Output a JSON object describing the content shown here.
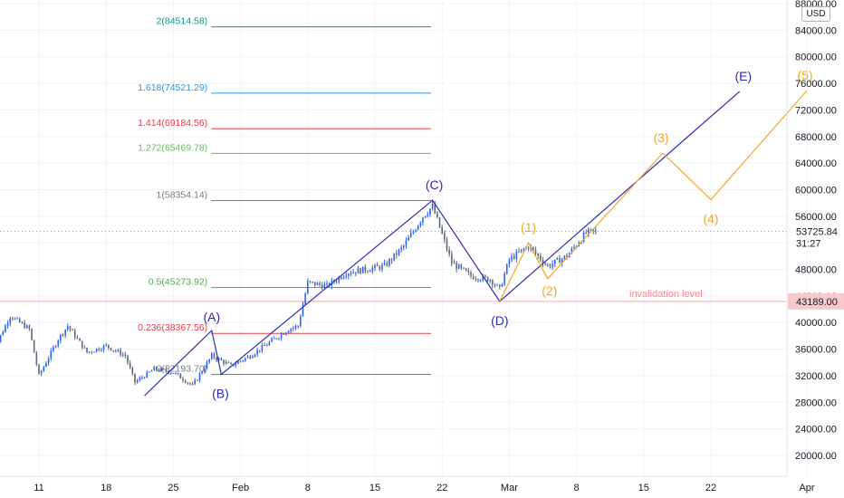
{
  "chart_data": {
    "type": "candlestick",
    "currency": "USD",
    "y_axis": {
      "ticks": [
        20000,
        24000,
        28000,
        32000,
        36000,
        40000,
        44000,
        48000,
        52000,
        56000,
        60000,
        64000,
        68000,
        72000,
        76000,
        80000,
        84000,
        88000
      ],
      "tick_labels": [
        "20000.00",
        "24000.00",
        "28000.00",
        "32000.00",
        "36000.00",
        "40000.00",
        "44000.00",
        "48000.00",
        "52000.00",
        "56000.00",
        "60000.00",
        "64000.00",
        "68000.00",
        "72000.00",
        "76000.00",
        "80000.00",
        "84000.00",
        "88000.00"
      ],
      "range": [
        18000,
        89000
      ]
    },
    "x_axis": {
      "tick_labels": [
        "11",
        "18",
        "25",
        "Feb",
        "8",
        "15",
        "22",
        "Mar",
        "8",
        "15",
        "22",
        "Apr"
      ],
      "tick_dates": [
        "2021-01-11",
        "2021-01-18",
        "2021-01-25",
        "2021-02-01",
        "2021-02-08",
        "2021-02-15",
        "2021-02-22",
        "2021-03-01",
        "2021-03-08",
        "2021-03-15",
        "2021-03-22",
        "2021-04-01"
      ],
      "range": [
        "2021-01-06",
        "2021-04-03"
      ]
    },
    "price_path": [
      {
        "date": "2021-01-06",
        "price": 35000
      },
      {
        "date": "2021-01-08",
        "price": 41000
      },
      {
        "date": "2021-01-10",
        "price": 39000
      },
      {
        "date": "2021-01-11",
        "price": 32000
      },
      {
        "date": "2021-01-13",
        "price": 37500
      },
      {
        "date": "2021-01-14",
        "price": 39500
      },
      {
        "date": "2021-01-16",
        "price": 35500
      },
      {
        "date": "2021-01-18",
        "price": 36500
      },
      {
        "date": "2021-01-20",
        "price": 35000
      },
      {
        "date": "2021-01-21",
        "price": 31000
      },
      {
        "date": "2021-01-23",
        "price": 33000
      },
      {
        "date": "2021-01-25",
        "price": 32500
      },
      {
        "date": "2021-01-27",
        "price": 30500
      },
      {
        "date": "2021-01-29",
        "price": 35000
      },
      {
        "date": "2021-01-31",
        "price": 33500
      },
      {
        "date": "2021-02-02",
        "price": 35000
      },
      {
        "date": "2021-02-04",
        "price": 37000
      },
      {
        "date": "2021-02-06",
        "price": 39000
      },
      {
        "date": "2021-02-07",
        "price": 39500
      },
      {
        "date": "2021-02-08",
        "price": 46000
      },
      {
        "date": "2021-02-10",
        "price": 45500
      },
      {
        "date": "2021-02-12",
        "price": 47500
      },
      {
        "date": "2021-02-14",
        "price": 48000
      },
      {
        "date": "2021-02-16",
        "price": 48500
      },
      {
        "date": "2021-02-18",
        "price": 51500
      },
      {
        "date": "2021-02-20",
        "price": 56000
      },
      {
        "date": "2021-02-21",
        "price": 57500
      },
      {
        "date": "2021-02-23",
        "price": 49000
      },
      {
        "date": "2021-02-25",
        "price": 47000
      },
      {
        "date": "2021-02-27",
        "price": 46500
      },
      {
        "date": "2021-02-28",
        "price": 45000
      },
      {
        "date": "2021-03-01",
        "price": 49500
      },
      {
        "date": "2021-03-03",
        "price": 51500
      },
      {
        "date": "2021-03-05",
        "price": 48500
      },
      {
        "date": "2021-03-07",
        "price": 50000
      },
      {
        "date": "2021-03-09",
        "price": 53500
      },
      {
        "date": "2021-03-10",
        "price": 53700
      }
    ],
    "fib_levels": [
      {
        "ratio_label": "0(32193.70)",
        "price": 32193.7,
        "color": "#787b86"
      },
      {
        "ratio_label": "0.236(38367.56)",
        "price": 38367.56,
        "color": "#f23645"
      },
      {
        "ratio_label": "0.5(45273.92)",
        "price": 45273.92,
        "color": "#4caf50"
      },
      {
        "ratio_label": "1(58354.14)",
        "price": 58354.14,
        "color": "#787b86"
      },
      {
        "ratio_label": "1.272(65469.78)",
        "price": 65469.78,
        "color": "#66bb6a"
      },
      {
        "ratio_label": "1.414(69184.56)",
        "price": 69184.56,
        "color": "#f23645"
      },
      {
        "ratio_label": "1.618(74521.29)",
        "price": 74521.29,
        "color": "#2196f3"
      },
      {
        "ratio_label": "2(84514.58)",
        "price": 84514.58,
        "color": "#089981"
      }
    ],
    "fib_range": [
      "2021-01-28",
      "2021-02-22"
    ],
    "wave_abcde": {
      "color": "#2a2ab8",
      "points": [
        {
          "date": "2021-01-22",
          "price": 29000
        },
        {
          "date": "2021-01-29",
          "price": 38800,
          "label": "(A)"
        },
        {
          "date": "2021-01-30",
          "price": 32200,
          "label": "(B)"
        },
        {
          "date": "2021-02-21",
          "price": 58400,
          "label": "(C)"
        },
        {
          "date": "2021-02-28",
          "price": 43200,
          "label": "(D)"
        },
        {
          "date": "2021-03-25",
          "price": 74800,
          "label": "(E)"
        }
      ]
    },
    "wave_12345": {
      "color": "#f5a623",
      "points": [
        {
          "date": "2021-02-28",
          "price": 43200
        },
        {
          "date": "2021-03-03",
          "price": 52000,
          "label": "(1)"
        },
        {
          "date": "2021-03-05",
          "price": 46600,
          "label": "(2)"
        },
        {
          "date": "2021-03-17",
          "price": 65500,
          "label": "(3)"
        },
        {
          "date": "2021-03-22",
          "price": 58500,
          "label": "(4)"
        },
        {
          "date": "2021-04-01",
          "price": 74900,
          "label": "(5)"
        }
      ]
    },
    "invalidation": {
      "price": 43189.0,
      "label": "invalidation level",
      "price_label": "43189.00",
      "color": "#f7525f"
    },
    "last_price": {
      "price": 53725.84,
      "price_label": "53725.84",
      "countdown": "31:27"
    }
  }
}
